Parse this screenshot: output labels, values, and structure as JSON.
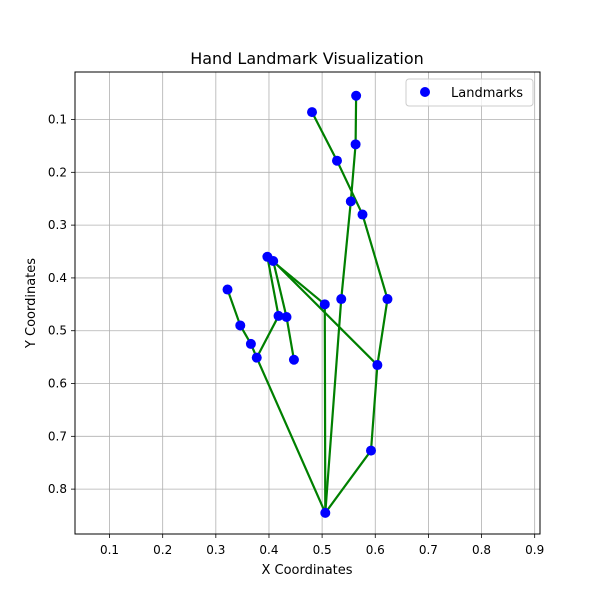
{
  "chart_data": {
    "type": "scatter",
    "title": "Hand Landmark Visualization",
    "xlabel": "X Coordinates",
    "ylabel": "Y Coordinates",
    "xlim": [
      0.035,
      0.91
    ],
    "ylim": [
      0.885,
      0.01
    ],
    "y_inverted": true,
    "grid": true,
    "legend_position": "top-right",
    "xticks": [
      "0.1",
      "0.2",
      "0.3",
      "0.4",
      "0.5",
      "0.6",
      "0.7",
      "0.8",
      "0.9"
    ],
    "yticks": [
      "0.1",
      "0.2",
      "0.3",
      "0.4",
      "0.5",
      "0.6",
      "0.7",
      "0.8"
    ],
    "series": [
      {
        "name": "Landmarks",
        "points": [
          {
            "x": 0.506,
            "y": 0.845
          },
          {
            "x": 0.592,
            "y": 0.727
          },
          {
            "x": 0.604,
            "y": 0.565
          },
          {
            "x": 0.623,
            "y": 0.44
          },
          {
            "x": 0.397,
            "y": 0.36
          },
          {
            "x": 0.536,
            "y": 0.44
          },
          {
            "x": 0.554,
            "y": 0.255
          },
          {
            "x": 0.563,
            "y": 0.147
          },
          {
            "x": 0.564,
            "y": 0.055
          },
          {
            "x": 0.505,
            "y": 0.45
          },
          {
            "x": 0.576,
            "y": 0.28
          },
          {
            "x": 0.528,
            "y": 0.178
          },
          {
            "x": 0.481,
            "y": 0.086
          },
          {
            "x": 0.447,
            "y": 0.555
          },
          {
            "x": 0.433,
            "y": 0.474
          },
          {
            "x": 0.408,
            "y": 0.368
          },
          {
            "x": 0.418,
            "y": 0.472
          },
          {
            "x": 0.377,
            "y": 0.551
          },
          {
            "x": 0.366,
            "y": 0.525
          },
          {
            "x": 0.346,
            "y": 0.49
          },
          {
            "x": 0.322,
            "y": 0.422
          }
        ]
      }
    ],
    "connections": [
      [
        0,
        1
      ],
      [
        1,
        2
      ],
      [
        2,
        3
      ],
      [
        3,
        10
      ],
      [
        0,
        5
      ],
      [
        5,
        6
      ],
      [
        6,
        7
      ],
      [
        7,
        8
      ],
      [
        0,
        9
      ],
      [
        9,
        4
      ],
      [
        4,
        16
      ],
      [
        16,
        17
      ],
      [
        17,
        0
      ],
      [
        17,
        18
      ],
      [
        18,
        19
      ],
      [
        19,
        20
      ],
      [
        2,
        15
      ],
      [
        15,
        14
      ],
      [
        14,
        13
      ],
      [
        10,
        11
      ],
      [
        11,
        12
      ]
    ],
    "colors": {
      "points": "#0000ff",
      "lines": "#008000",
      "grid": "#b0b0b0"
    }
  }
}
